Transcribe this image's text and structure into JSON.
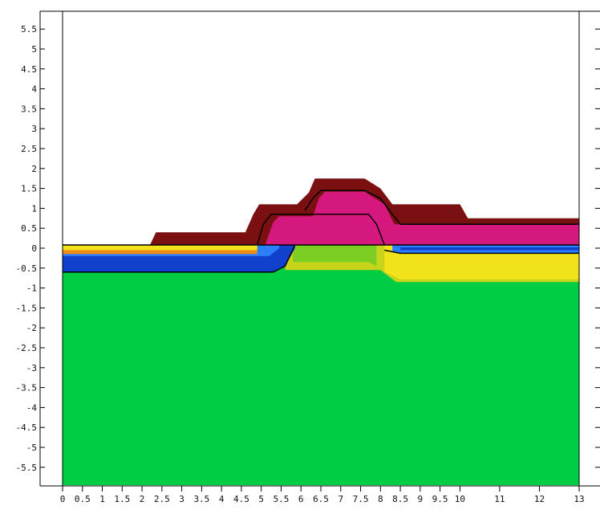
{
  "chart_data": {
    "type": "area",
    "title": "",
    "xlabel": "",
    "ylabel": "",
    "xlim": [
      0,
      13
    ],
    "ylim": [
      -6,
      6
    ],
    "x_ticks": [
      "0",
      "0.5",
      "1",
      "1.5",
      "2",
      "2.5",
      "3",
      "3.5",
      "4",
      "4.5",
      "5",
      "5.5",
      "6",
      "6.5",
      "7",
      "7.5",
      "8",
      "8.5",
      "9",
      "9.5",
      "10",
      "11",
      "12",
      "13"
    ],
    "x_tick_values": [
      0,
      0.5,
      1,
      1.5,
      2,
      2.5,
      3,
      3.5,
      4,
      4.5,
      5,
      5.5,
      6,
      6.5,
      7,
      7.5,
      8,
      8.5,
      9,
      9.5,
      10,
      11,
      12,
      13
    ],
    "y_ticks": [
      "5.5",
      "5",
      "4.5",
      "4",
      "3.5",
      "3",
      "2.5",
      "2",
      "1.5",
      "1",
      "0.5",
      "0",
      "-0.5",
      "-1",
      "-1.5",
      "-2",
      "-2.5",
      "-3",
      "-3.5",
      "-4",
      "-4.5",
      "-5",
      "-5.5"
    ],
    "y_tick_values": [
      5.5,
      5,
      4.5,
      4,
      3.5,
      3,
      2.5,
      2,
      1.5,
      1,
      0.5,
      0,
      -0.5,
      -1,
      -1.5,
      -2,
      -2.5,
      -3,
      -3.5,
      -4,
      -4.5,
      -5,
      -5.5
    ],
    "grid": false,
    "colors": {
      "substrate": "#00cc44",
      "blue_dark": "#1040cc",
      "blue_light": "#2a7fff",
      "orange": "#f08a1a",
      "yellow": "#f2e21a",
      "yellow_green": "#c8d41c",
      "mid_green": "#7ccf22",
      "magenta": "#d4187e",
      "maroon": "#7a1010",
      "outline": "#000000"
    },
    "regions": [
      {
        "name": "substrate",
        "color": "substrate",
        "points": [
          [
            0,
            -5.95
          ],
          [
            13,
            -5.95
          ],
          [
            13,
            0.08
          ],
          [
            0,
            0.08
          ]
        ]
      },
      {
        "name": "yellow-mid-gradient",
        "color": "yellow_green",
        "points": [
          [
            5.6,
            -0.55
          ],
          [
            8,
            -0.55
          ],
          [
            8.4,
            -0.85
          ],
          [
            13,
            -0.85
          ],
          [
            13,
            0.08
          ],
          [
            5.6,
            0.08
          ]
        ]
      },
      {
        "name": "yellow-right",
        "color": "yellow",
        "points": [
          [
            8.1,
            -0.6
          ],
          [
            8.5,
            -0.78
          ],
          [
            13,
            -0.78
          ],
          [
            13,
            0.08
          ],
          [
            8.1,
            0.08
          ]
        ]
      },
      {
        "name": "mid-green-zone",
        "color": "mid_green",
        "points": [
          [
            5.8,
            -0.35
          ],
          [
            7.7,
            -0.35
          ],
          [
            7.9,
            -0.45
          ],
          [
            7.9,
            0.08
          ],
          [
            5.8,
            0.08
          ]
        ]
      },
      {
        "name": "left-blue-dark",
        "color": "blue_dark",
        "points": [
          [
            0,
            -0.6
          ],
          [
            5.3,
            -0.6
          ],
          [
            5.6,
            -0.45
          ],
          [
            5.85,
            0
          ],
          [
            5.85,
            0.08
          ],
          [
            0,
            0.08
          ]
        ]
      },
      {
        "name": "left-blue-light",
        "color": "blue_light",
        "points": [
          [
            0,
            -0.2
          ],
          [
            5.2,
            -0.2
          ],
          [
            5.45,
            0
          ],
          [
            5.45,
            0.08
          ],
          [
            0,
            0.08
          ]
        ]
      },
      {
        "name": "left-orange",
        "color": "orange",
        "points": [
          [
            0,
            -0.15
          ],
          [
            4.9,
            -0.15
          ],
          [
            4.9,
            0.08
          ],
          [
            0,
            0.08
          ]
        ]
      },
      {
        "name": "left-yellow",
        "color": "yellow",
        "points": [
          [
            0,
            -0.05
          ],
          [
            4.9,
            -0.05
          ],
          [
            4.9,
            0.08
          ],
          [
            0,
            0.08
          ]
        ]
      },
      {
        "name": "right-blue",
        "color": "blue_light",
        "points": [
          [
            8.3,
            -0.1
          ],
          [
            8.5,
            -0.13
          ],
          [
            13,
            -0.13
          ],
          [
            13,
            0.08
          ],
          [
            8.3,
            0.08
          ]
        ]
      },
      {
        "name": "right-blue-dark",
        "color": "blue_dark",
        "points": [
          [
            8.5,
            -0.05
          ],
          [
            13,
            -0.05
          ],
          [
            13,
            0.02
          ],
          [
            8.5,
            0.02
          ]
        ]
      },
      {
        "name": "maroon-layer",
        "color": "maroon",
        "points": [
          [
            2.2,
            0.08
          ],
          [
            2.35,
            0.4
          ],
          [
            4.6,
            0.4
          ],
          [
            4.8,
            0.85
          ],
          [
            4.95,
            1.1
          ],
          [
            5.9,
            1.1
          ],
          [
            6.2,
            1.4
          ],
          [
            6.35,
            1.75
          ],
          [
            7.6,
            1.75
          ],
          [
            8,
            1.5
          ],
          [
            8.3,
            1.1
          ],
          [
            10,
            1.1
          ],
          [
            10.2,
            0.75
          ],
          [
            13,
            0.75
          ],
          [
            13,
            0.08
          ]
        ]
      },
      {
        "name": "magenta-layer",
        "color": "magenta",
        "points": [
          [
            5.1,
            0.08
          ],
          [
            5.3,
            0.65
          ],
          [
            5.45,
            0.8
          ],
          [
            6.3,
            0.8
          ],
          [
            6.45,
            1.25
          ],
          [
            6.6,
            1.42
          ],
          [
            7.6,
            1.42
          ],
          [
            8.1,
            1.1
          ],
          [
            8.35,
            0.6
          ],
          [
            13,
            0.6
          ],
          [
            13,
            0.08
          ]
        ]
      }
    ],
    "outlines": [
      {
        "name": "surface-line",
        "points": [
          [
            0,
            0.08
          ],
          [
            13,
            0.08
          ]
        ]
      },
      {
        "name": "substrate-boundary",
        "points": [
          [
            0,
            -0.6
          ],
          [
            5.3,
            -0.6
          ],
          [
            5.6,
            -0.45
          ],
          [
            5.85,
            0.08
          ]
        ]
      },
      {
        "name": "left-poly-outline",
        "points": [
          [
            4.9,
            0.08
          ],
          [
            5.05,
            0.6
          ],
          [
            5.25,
            0.85
          ],
          [
            7.7,
            0.85
          ],
          [
            7.9,
            0.6
          ],
          [
            8.1,
            0.08
          ]
        ]
      },
      {
        "name": "upper-poly-outline",
        "points": [
          [
            6.1,
            0.95
          ],
          [
            6.3,
            1.25
          ],
          [
            6.5,
            1.45
          ],
          [
            7.6,
            1.45
          ],
          [
            8.0,
            1.25
          ],
          [
            8.3,
            0.85
          ],
          [
            8.5,
            0.6
          ],
          [
            13,
            0.6
          ]
        ]
      },
      {
        "name": "right-blue-outline",
        "points": [
          [
            8.1,
            -0.05
          ],
          [
            8.5,
            -0.13
          ],
          [
            13,
            -0.13
          ]
        ]
      }
    ]
  }
}
